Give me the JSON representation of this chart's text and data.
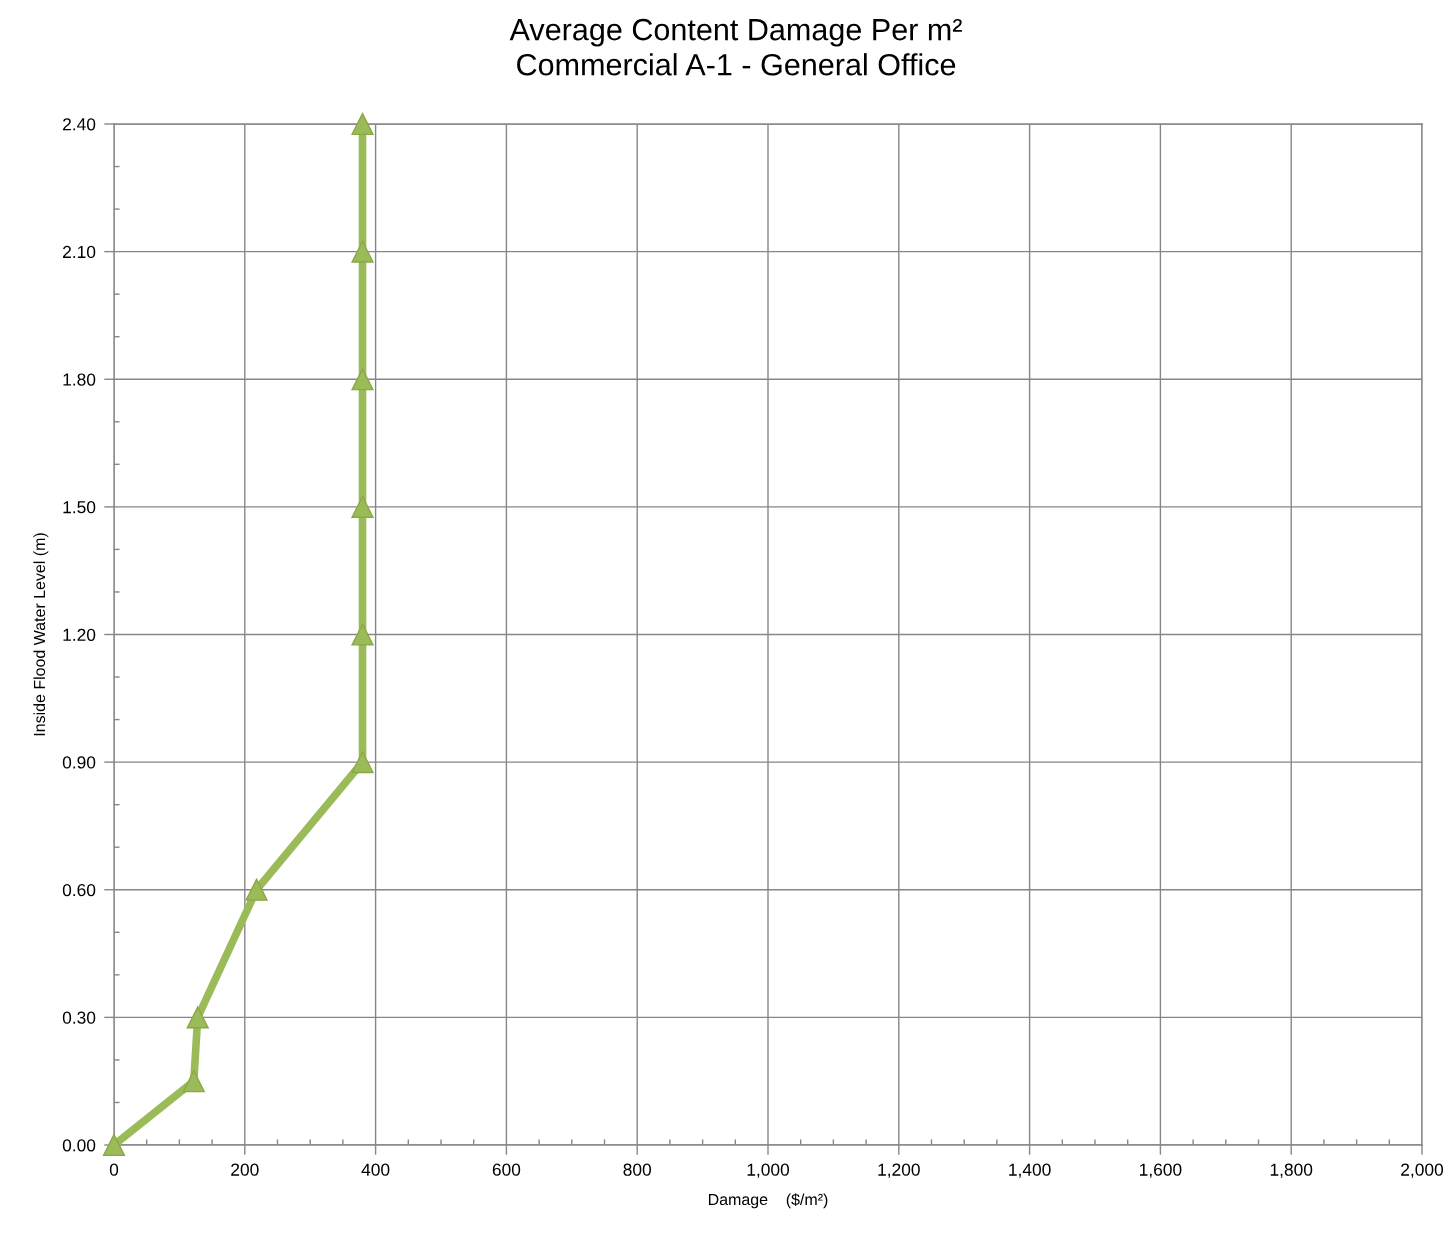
{
  "chart_data": {
    "type": "line",
    "title": "Average Content Damage Per m²\nCommercial A-1 - General Office",
    "xlabel": "Damage    ($/m²)",
    "ylabel": "Inside Flood Water Level (m)",
    "x": [
      0,
      122,
      128,
      218,
      380,
      380,
      380,
      380,
      380,
      380
    ],
    "values": [
      0,
      0.15,
      0.3,
      0.6,
      0.9,
      1.2,
      1.5,
      1.8,
      2.1,
      2.4
    ],
    "color": "#9bbb59",
    "marker": "triangle",
    "line_style": "solid",
    "grid": true,
    "xlim": [
      0,
      2000
    ],
    "xticks": [
      0,
      200,
      400,
      600,
      800,
      {
        "value": 1000,
        "label": "1,000"
      },
      {
        "value": 1200,
        "label": "1,200"
      },
      {
        "value": 1400,
        "label": "1,400"
      },
      {
        "value": 1600,
        "label": "1,600"
      },
      {
        "value": 1800,
        "label": "1,800"
      },
      {
        "value": 2000,
        "label": "2,000"
      }
    ],
    "ylim": [
      0,
      2.4
    ],
    "yticks": [
      {
        "value": 0,
        "label": "0.00"
      },
      {
        "value": 0.3,
        "label": "0.30"
      },
      {
        "value": 0.6,
        "label": "0.60"
      },
      {
        "value": 0.9,
        "label": "0.90"
      },
      {
        "value": 1.2,
        "label": "1.20"
      },
      {
        "value": 1.5,
        "label": "1.50"
      },
      {
        "value": 1.8,
        "label": "1.80"
      },
      {
        "value": 2.1,
        "label": "2.10"
      },
      {
        "value": 2.4,
        "label": "2.40"
      }
    ]
  }
}
